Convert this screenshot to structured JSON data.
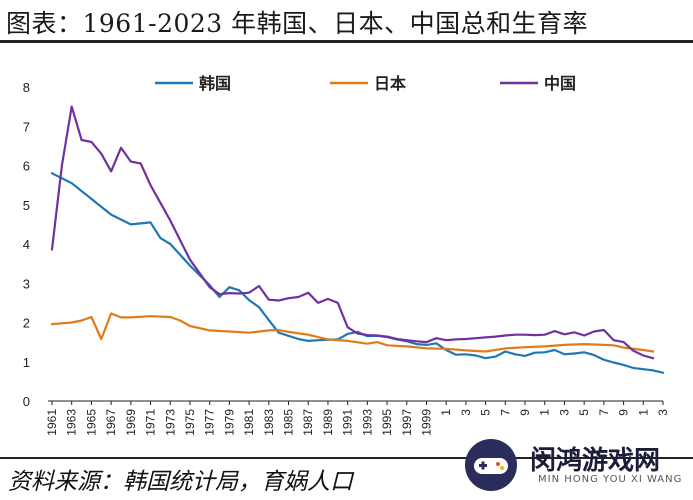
{
  "title": "图表：1961-2023 年韩国、日本、中国总和生育率",
  "source": "资料来源：韩国统计局，育娲人口",
  "watermark": {
    "name": "闵鸿游戏网",
    "romanized": "MIN HONG YOU XI WANG",
    "logo_icon": "gamepad-icon"
  },
  "colors": {
    "korea": "#1f77b4",
    "japan": "#e07b1a",
    "china": "#7030a0"
  },
  "chart_data": {
    "type": "line",
    "title": "图表：1961-2023 年韩国、日本、中国总和生育率",
    "xlabel": "",
    "ylabel": "",
    "xlim": [
      1961,
      2023
    ],
    "ylim": [
      0,
      8
    ],
    "yticks": [
      0,
      1,
      2,
      3,
      4,
      5,
      6,
      7,
      8
    ],
    "xticks": [
      "1961",
      "1963",
      "1965",
      "1967",
      "1969",
      "1971",
      "1973",
      "1975",
      "1977",
      "1979",
      "1981",
      "1983",
      "1985",
      "1987",
      "1989",
      "1991",
      "1993",
      "1995",
      "1997",
      "1999",
      "1",
      "3",
      "5",
      "7",
      "9",
      "1",
      "3",
      "5",
      "7",
      "9",
      "1",
      "3"
    ],
    "grid": false,
    "legend": "top",
    "series": [
      {
        "name": "韩国",
        "color": "#1f77b4",
        "points": [
          [
            1961,
            5.8
          ],
          [
            1963,
            5.55
          ],
          [
            1965,
            5.15
          ],
          [
            1967,
            4.75
          ],
          [
            1969,
            4.5
          ],
          [
            1971,
            4.55
          ],
          [
            1972,
            4.15
          ],
          [
            1973,
            4.0
          ],
          [
            1975,
            3.45
          ],
          [
            1977,
            2.95
          ],
          [
            1978,
            2.65
          ],
          [
            1979,
            2.9
          ],
          [
            1980,
            2.82
          ],
          [
            1981,
            2.57
          ],
          [
            1982,
            2.39
          ],
          [
            1983,
            2.06
          ],
          [
            1984,
            1.74
          ],
          [
            1985,
            1.66
          ],
          [
            1986,
            1.58
          ],
          [
            1987,
            1.53
          ],
          [
            1988,
            1.55
          ],
          [
            1989,
            1.56
          ],
          [
            1990,
            1.57
          ],
          [
            1991,
            1.71
          ],
          [
            1992,
            1.76
          ],
          [
            1993,
            1.65
          ],
          [
            1994,
            1.66
          ],
          [
            1995,
            1.63
          ],
          [
            1996,
            1.57
          ],
          [
            1997,
            1.52
          ],
          [
            1998,
            1.45
          ],
          [
            1999,
            1.43
          ],
          [
            2000,
            1.47
          ],
          [
            2001,
            1.3
          ],
          [
            2002,
            1.18
          ],
          [
            2003,
            1.19
          ],
          [
            2004,
            1.16
          ],
          [
            2005,
            1.09
          ],
          [
            2006,
            1.13
          ],
          [
            2007,
            1.26
          ],
          [
            2008,
            1.19
          ],
          [
            2009,
            1.15
          ],
          [
            2010,
            1.23
          ],
          [
            2011,
            1.24
          ],
          [
            2012,
            1.3
          ],
          [
            2013,
            1.19
          ],
          [
            2014,
            1.21
          ],
          [
            2015,
            1.24
          ],
          [
            2016,
            1.17
          ],
          [
            2017,
            1.05
          ],
          [
            2018,
            0.98
          ],
          [
            2019,
            0.92
          ],
          [
            2020,
            0.84
          ],
          [
            2021,
            0.81
          ],
          [
            2022,
            0.78
          ],
          [
            2023,
            0.72
          ]
        ]
      },
      {
        "name": "日本",
        "color": "#e07b1a",
        "points": [
          [
            1961,
            1.96
          ],
          [
            1963,
            2.0
          ],
          [
            1964,
            2.05
          ],
          [
            1965,
            2.14
          ],
          [
            1966,
            1.58
          ],
          [
            1967,
            2.23
          ],
          [
            1968,
            2.13
          ],
          [
            1969,
            2.13
          ],
          [
            1971,
            2.16
          ],
          [
            1973,
            2.14
          ],
          [
            1974,
            2.05
          ],
          [
            1975,
            1.91
          ],
          [
            1977,
            1.8
          ],
          [
            1979,
            1.77
          ],
          [
            1981,
            1.74
          ],
          [
            1982,
            1.77
          ],
          [
            1983,
            1.8
          ],
          [
            1984,
            1.81
          ],
          [
            1985,
            1.76
          ],
          [
            1987,
            1.69
          ],
          [
            1989,
            1.57
          ],
          [
            1991,
            1.53
          ],
          [
            1993,
            1.46
          ],
          [
            1994,
            1.5
          ],
          [
            1995,
            1.42
          ],
          [
            1997,
            1.39
          ],
          [
            1999,
            1.34
          ],
          [
            2001,
            1.33
          ],
          [
            2003,
            1.29
          ],
          [
            2005,
            1.26
          ],
          [
            2007,
            1.34
          ],
          [
            2009,
            1.37
          ],
          [
            2011,
            1.39
          ],
          [
            2013,
            1.43
          ],
          [
            2015,
            1.45
          ],
          [
            2016,
            1.44
          ],
          [
            2017,
            1.43
          ],
          [
            2018,
            1.42
          ],
          [
            2019,
            1.36
          ],
          [
            2020,
            1.33
          ],
          [
            2021,
            1.3
          ],
          [
            2022,
            1.26
          ]
        ]
      },
      {
        "name": "中国",
        "color": "#7030a0",
        "points": [
          [
            1961,
            3.86
          ],
          [
            1962,
            6.0
          ],
          [
            1963,
            7.5
          ],
          [
            1964,
            6.65
          ],
          [
            1965,
            6.6
          ],
          [
            1966,
            6.3
          ],
          [
            1967,
            5.85
          ],
          [
            1968,
            6.45
          ],
          [
            1969,
            6.1
          ],
          [
            1970,
            6.05
          ],
          [
            1971,
            5.5
          ],
          [
            1972,
            5.05
          ],
          [
            1973,
            4.6
          ],
          [
            1974,
            4.1
          ],
          [
            1975,
            3.6
          ],
          [
            1976,
            3.25
          ],
          [
            1977,
            2.9
          ],
          [
            1978,
            2.72
          ],
          [
            1979,
            2.75
          ],
          [
            1980,
            2.74
          ],
          [
            1981,
            2.76
          ],
          [
            1982,
            2.93
          ],
          [
            1983,
            2.58
          ],
          [
            1984,
            2.56
          ],
          [
            1985,
            2.62
          ],
          [
            1986,
            2.65
          ],
          [
            1987,
            2.76
          ],
          [
            1988,
            2.5
          ],
          [
            1989,
            2.6
          ],
          [
            1990,
            2.5
          ],
          [
            1991,
            1.88
          ],
          [
            1992,
            1.72
          ],
          [
            1993,
            1.68
          ],
          [
            1994,
            1.67
          ],
          [
            1995,
            1.64
          ],
          [
            1996,
            1.58
          ],
          [
            1997,
            1.55
          ],
          [
            1998,
            1.52
          ],
          [
            1999,
            1.5
          ],
          [
            2000,
            1.6
          ],
          [
            2001,
            1.55
          ],
          [
            2002,
            1.57
          ],
          [
            2003,
            1.58
          ],
          [
            2004,
            1.6
          ],
          [
            2005,
            1.62
          ],
          [
            2006,
            1.64
          ],
          [
            2007,
            1.67
          ],
          [
            2008,
            1.69
          ],
          [
            2009,
            1.69
          ],
          [
            2010,
            1.68
          ],
          [
            2011,
            1.69
          ],
          [
            2012,
            1.78
          ],
          [
            2013,
            1.7
          ],
          [
            2014,
            1.75
          ],
          [
            2015,
            1.67
          ],
          [
            2016,
            1.77
          ],
          [
            2017,
            1.81
          ],
          [
            2018,
            1.55
          ],
          [
            2019,
            1.5
          ],
          [
            2020,
            1.28
          ],
          [
            2021,
            1.16
          ],
          [
            2022,
            1.09
          ]
        ]
      }
    ]
  }
}
